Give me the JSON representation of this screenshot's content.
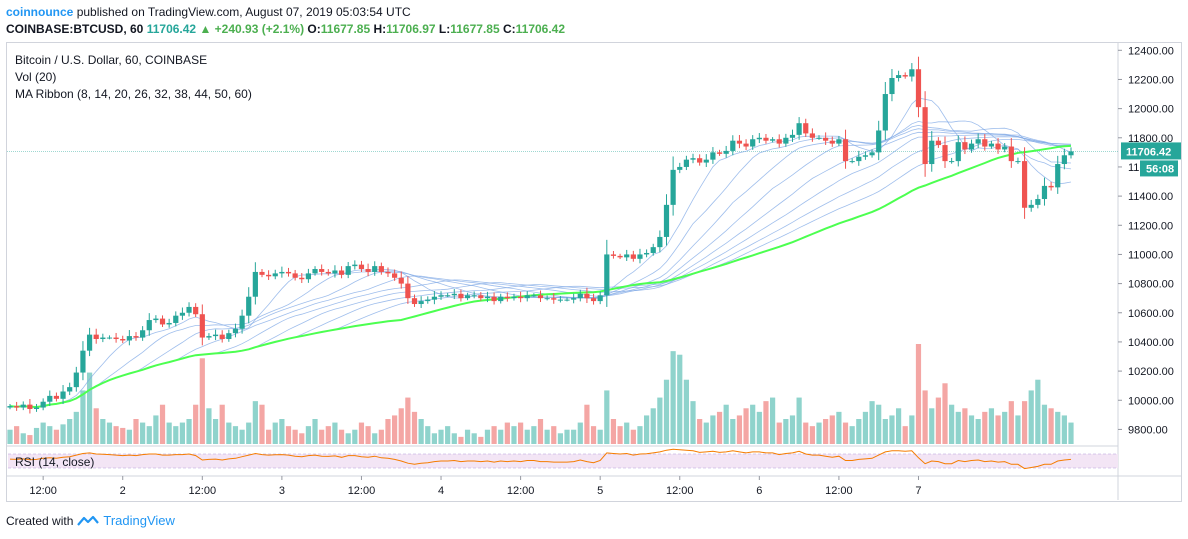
{
  "header": {
    "brand": "coinnounce",
    "published": "published on TradingView.com, August 07, 2019 05:03:54 UTC"
  },
  "ohlc": {
    "symbol": "COINBASE:BTCUSD, 60",
    "last": "11706.42",
    "change": "+240.93 (+2.1%)",
    "o_label": "O:",
    "o": "11677.85",
    "h_label": "H:",
    "h": "11706.97",
    "l_label": "L:",
    "l": "11677.85",
    "c_label": "C:",
    "c": "11706.42"
  },
  "legend": {
    "title": "Bitcoin / U.S. Dollar, 60, COINBASE",
    "vol": "Vol (20)",
    "ma": "MA Ribbon (8, 14, 20, 26, 32, 38, 44, 50, 60)"
  },
  "rsi_label": "RSI (14, close)",
  "footer": {
    "created": "Created with",
    "brand": "TradingView"
  },
  "colors": {
    "up": "#26a69a",
    "down": "#ef5350",
    "vol_up": "#8fd3cc",
    "vol_down": "#f4a6a4",
    "ma_main": "#4cff50",
    "ma_ribbon": "#7fa8e6",
    "rsi": "#f57c00",
    "rsi_band": "#f3e5f5"
  },
  "chart_data": {
    "type": "candlestick",
    "y_axis": {
      "ylim": [
        9700,
        12450
      ],
      "ticks": [
        9800,
        10000,
        10200,
        10400,
        10600,
        10800,
        11000,
        11200,
        11400,
        11600,
        11800,
        12000,
        12200,
        12400
      ],
      "tick_labels": [
        "9800.00",
        "10000.00",
        "10200.00",
        "10400.00",
        "10600.00",
        "10800.00",
        "11000.00",
        "11200.00",
        "11400.00",
        "11600.00",
        "11800.00",
        "12000.00",
        "12200.00",
        "12400.00"
      ]
    },
    "x_axis": {
      "unit": "hours since first visible candle",
      "ticks": [
        {
          "label": "12:00",
          "x": 5
        },
        {
          "label": "2",
          "x": 17
        },
        {
          "label": "12:00",
          "x": 29
        },
        {
          "label": "3",
          "x": 41
        },
        {
          "label": "12:00",
          "x": 53
        },
        {
          "label": "4",
          "x": 65
        },
        {
          "label": "12:00",
          "x": 77
        },
        {
          "label": "5",
          "x": 89
        },
        {
          "label": "12:00",
          "x": 101
        },
        {
          "label": "6",
          "x": 113
        },
        {
          "label": "12:00",
          "x": 125
        },
        {
          "label": "7",
          "x": 137
        }
      ]
    },
    "price_tag": "11706.42",
    "time_tag": "56:08",
    "close_series": [
      9960,
      9950,
      9970,
      9940,
      9950,
      9990,
      10030,
      10010,
      10060,
      10090,
      10190,
      10340,
      10450,
      10420,
      10430,
      10430,
      10420,
      10410,
      10440,
      10430,
      10480,
      10550,
      10560,
      10520,
      10530,
      10580,
      10600,
      10640,
      10590,
      10430,
      10440,
      10450,
      10420,
      10460,
      10490,
      10580,
      10710,
      10880,
      10860,
      10850,
      10870,
      10880,
      10870,
      10840,
      10830,
      10870,
      10900,
      10880,
      10870,
      10890,
      10860,
      10920,
      10930,
      10900,
      10880,
      10920,
      10880,
      10870,
      10840,
      10800,
      10700,
      10660,
      10680,
      10690,
      10710,
      10720,
      10720,
      10730,
      10700,
      10720,
      10720,
      10700,
      10710,
      10680,
      10710,
      10700,
      10710,
      10700,
      10720,
      10720,
      10700,
      10700,
      10690,
      10690,
      10690,
      10700,
      10730,
      10700,
      10680,
      10720,
      11000,
      10990,
      10980,
      11000,
      10970,
      11000,
      11010,
      11050,
      11120,
      11340,
      11580,
      11600,
      11650,
      11660,
      11630,
      11650,
      11700,
      11690,
      11710,
      11780,
      11760,
      11740,
      11790,
      11800,
      11780,
      11790,
      11760,
      11800,
      11820,
      11900,
      11830,
      11800,
      11800,
      11780,
      11760,
      11790,
      11640,
      11640,
      11670,
      11680,
      11700,
      11850,
      12100,
      12210,
      12230,
      12220,
      12270,
      12010,
      11620,
      11780,
      11750,
      11640,
      11640,
      11770,
      11720,
      11760,
      11790,
      11740,
      11760,
      11720,
      11740,
      11640,
      11640,
      11320,
      11340,
      11380,
      11470,
      11460,
      11620,
      11680,
      11706.42
    ],
    "volume_scale": "relative",
    "volume_series": [
      8,
      10,
      6,
      5,
      9,
      12,
      10,
      8,
      11,
      14,
      18,
      30,
      40,
      20,
      14,
      12,
      10,
      9,
      8,
      14,
      12,
      10,
      16,
      22,
      12,
      10,
      12,
      14,
      22,
      48,
      20,
      14,
      22,
      12,
      10,
      8,
      12,
      24,
      22,
      8,
      12,
      14,
      10,
      8,
      6,
      10,
      14,
      8,
      10,
      12,
      8,
      6,
      8,
      12,
      10,
      6,
      8,
      14,
      16,
      20,
      26,
      18,
      14,
      10,
      6,
      8,
      10,
      6,
      4,
      8,
      6,
      4,
      8,
      10,
      8,
      12,
      10,
      12,
      8,
      10,
      14,
      8,
      10,
      6,
      8,
      8,
      12,
      22,
      10,
      8,
      30,
      14,
      10,
      12,
      8,
      10,
      16,
      20,
      26,
      36,
      52,
      50,
      36,
      24,
      14,
      12,
      16,
      18,
      22,
      14,
      16,
      20,
      22,
      18,
      24,
      26,
      12,
      14,
      16,
      26,
      12,
      10,
      12,
      14,
      16,
      18,
      12,
      10,
      14,
      18,
      24,
      22,
      14,
      16,
      20,
      10,
      16,
      56,
      30,
      20,
      26,
      34,
      22,
      18,
      20,
      16,
      14,
      18,
      20,
      16,
      18,
      24,
      16,
      24,
      30,
      36,
      22,
      20,
      18,
      16,
      12,
      10,
      8
    ],
    "rsi": {
      "ylim": [
        0,
        100
      ],
      "series": [
        55,
        54,
        56,
        53,
        54,
        58,
        60,
        58,
        62,
        64,
        70,
        76,
        78,
        74,
        73,
        72,
        70,
        68,
        70,
        68,
        72,
        74,
        74,
        70,
        70,
        72,
        72,
        74,
        68,
        52,
        54,
        55,
        52,
        56,
        58,
        64,
        70,
        76,
        72,
        70,
        71,
        72,
        70,
        66,
        64,
        68,
        70,
        66,
        65,
        67,
        62,
        68,
        68,
        64,
        62,
        66,
        60,
        58,
        54,
        48,
        40,
        36,
        40,
        42,
        46,
        48,
        48,
        50,
        46,
        48,
        48,
        46,
        48,
        44,
        48,
        46,
        48,
        46,
        50,
        50,
        46,
        46,
        44,
        44,
        44,
        46,
        52,
        46,
        42,
        50,
        78,
        76,
        74,
        76,
        70,
        74,
        75,
        78,
        82,
        88,
        92,
        90,
        88,
        86,
        80,
        82,
        84,
        80,
        82,
        86,
        82,
        78,
        82,
        82,
        78,
        78,
        72,
        76,
        78,
        84,
        74,
        70,
        70,
        66,
        62,
        66,
        50,
        50,
        54,
        56,
        58,
        70,
        82,
        86,
        86,
        84,
        86,
        60,
        38,
        48,
        46,
        38,
        38,
        50,
        46,
        50,
        52,
        46,
        48,
        44,
        46,
        36,
        36,
        20,
        24,
        28,
        36,
        36,
        48,
        52,
        54
      ]
    }
  }
}
